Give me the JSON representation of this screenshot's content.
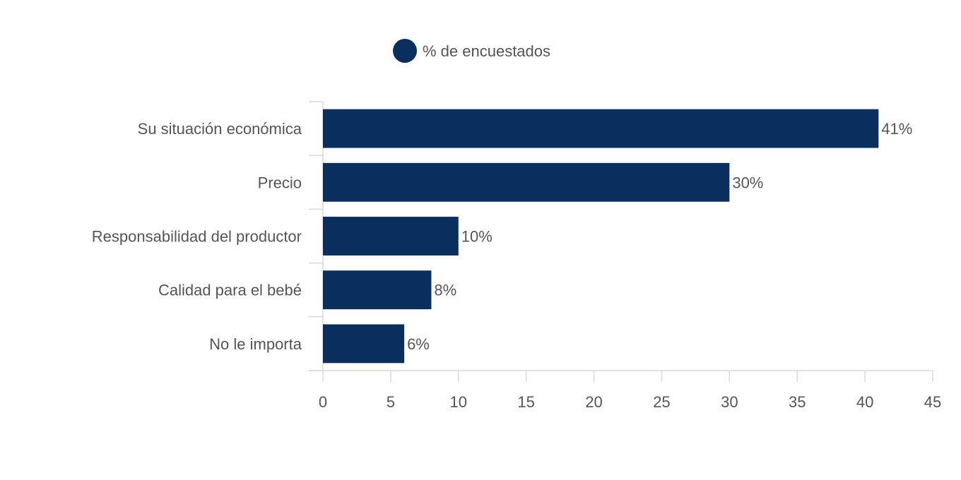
{
  "chart_data": {
    "type": "bar",
    "orientation": "horizontal",
    "title": "",
    "xlabel": "",
    "ylabel": "",
    "categories": [
      "Su situación económica",
      "Precio",
      "Responsabilidad del productor",
      "Calidad para el bebé",
      "No le importa"
    ],
    "series": [
      {
        "name": "% de encuestados",
        "values": [
          41,
          30,
          10,
          8,
          6
        ],
        "data_labels": [
          "41%",
          "30%",
          "10%",
          "8%",
          "6%"
        ],
        "color": "#0a2f5f"
      }
    ],
    "xlim": [
      0,
      45
    ],
    "x_ticks": [
      "0",
      "5",
      "10",
      "15",
      "20",
      "25",
      "30",
      "35",
      "40",
      "45"
    ],
    "legend_position": "top-center",
    "grid": false
  },
  "colors": {
    "bar": "#0a2f5f",
    "text": "#555555",
    "axis": "#d9d9d9"
  }
}
